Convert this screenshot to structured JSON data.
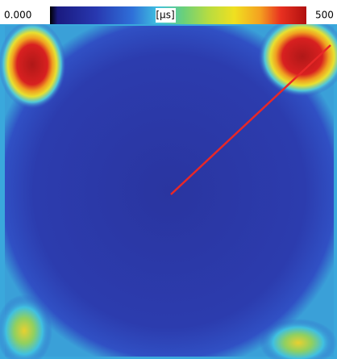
{
  "colorbar": {
    "min_label": "0.000",
    "unit": "[µs]",
    "max_label": "500"
  }
}
